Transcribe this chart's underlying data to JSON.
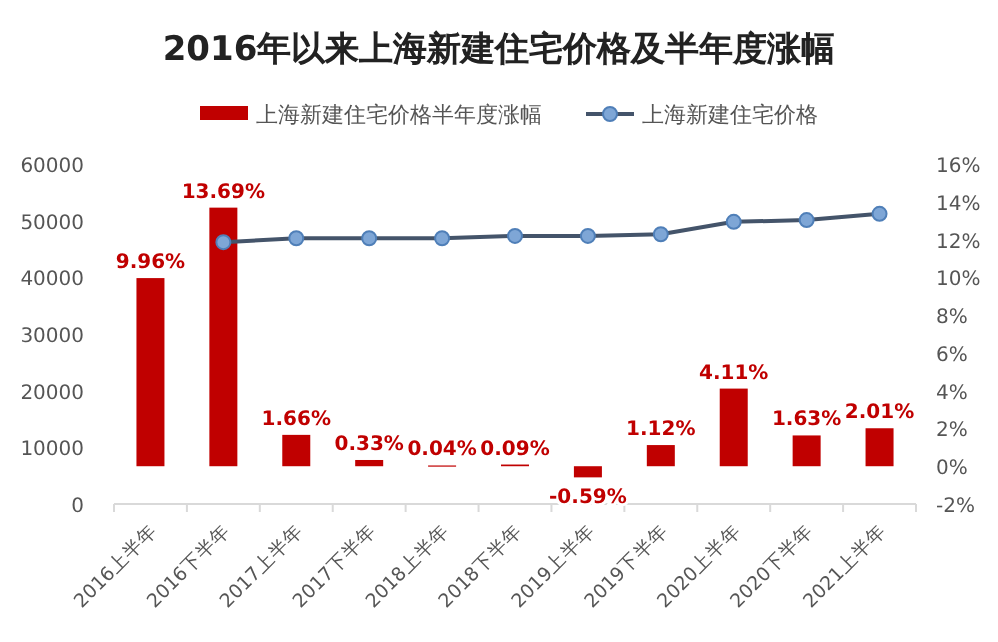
{
  "chart_data": {
    "type": "bar",
    "title": "2016年以来上海新建住宅价格及半年度涨幅",
    "categories": [
      "2016上半年",
      "2016下半年",
      "2017上半年",
      "2017下半年",
      "2018上半年",
      "2018下半年",
      "2019上半年",
      "2019下半年",
      "2020上半年",
      "2020下半年",
      "2021上半年"
    ],
    "series": [
      {
        "name": "上海新建住宅价格半年度涨幅",
        "axis": "y2",
        "color": "#c00000",
        "values": [
          9.96,
          13.69,
          1.66,
          0.33,
          0.04,
          0.09,
          -0.59,
          1.12,
          4.11,
          1.63,
          2.01
        ],
        "value_labels": [
          "9.96%",
          "13.69%",
          "1.66%",
          "0.33%",
          "0.04%",
          "0.09%",
          "-0.59%",
          "1.12%",
          "4.11%",
          "1.63%",
          "2.01%"
        ]
      },
      {
        "name": "上海新建住宅价格",
        "type": "line",
        "axis": "y",
        "color": "#44546a",
        "values": [
          null,
          46200,
          46900,
          46900,
          46900,
          47300,
          47300,
          47600,
          49800,
          50100,
          51200
        ]
      }
    ],
    "ylim": [
      0,
      60000
    ],
    "yticks": [
      0,
      10000,
      20000,
      30000,
      40000,
      50000,
      60000
    ],
    "y2lim": [
      -2,
      16
    ],
    "y2ticks": [
      {
        "value": -2,
        "label": "-2%"
      },
      {
        "value": 0,
        "label": "0%"
      },
      {
        "value": 2,
        "label": "2%"
      },
      {
        "value": 4,
        "label": "4%"
      },
      {
        "value": 6,
        "label": "6%"
      },
      {
        "value": 8,
        "label": "8%"
      },
      {
        "value": 10,
        "label": "10%"
      },
      {
        "value": 12,
        "label": "12%"
      },
      {
        "value": 14,
        "label": "14%"
      },
      {
        "value": 16,
        "label": "16%"
      }
    ],
    "legend": "top",
    "marker": "circle",
    "grid": false
  }
}
